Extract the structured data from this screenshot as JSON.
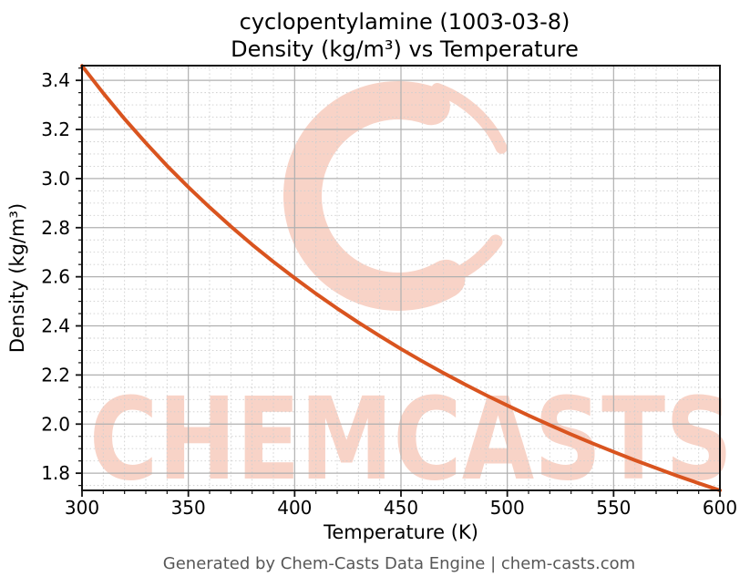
{
  "watermark": {
    "text": "CHEMCASTS",
    "color": "#f8d3c7"
  },
  "footer": {
    "text": "Generated by Chem-Casts Data Engine | chem-casts.com",
    "color": "#575757"
  },
  "colors": {
    "curve": "#d9541f",
    "major_grid": "#b0b0b0",
    "minor_grid": "#cfcfcf",
    "spine": "#111111",
    "tick": "#111111"
  },
  "chart_data": {
    "type": "line",
    "title": "cyclopentylamine (1003-03-8)",
    "subtitle": "Density (kg/m³) vs Temperature",
    "xlabel": "Temperature (K)",
    "ylabel": "Density (kg/m³)",
    "xlim": [
      300,
      600
    ],
    "ylim": [
      1.73,
      3.46
    ],
    "x_major_ticks": [
      300,
      350,
      400,
      450,
      500,
      550,
      600
    ],
    "y_major_ticks": [
      1.8,
      2.0,
      2.2,
      2.4,
      2.6,
      2.8,
      3.0,
      3.2,
      3.4
    ],
    "x_minor_step": 10,
    "y_minor_step": 0.05,
    "grid": true,
    "legend": false,
    "series": [
      {
        "name": "Density (kg/m³)",
        "color": "#d9541f",
        "x": [
          300,
          310,
          320,
          330,
          340,
          350,
          360,
          370,
          380,
          390,
          400,
          410,
          420,
          430,
          440,
          450,
          460,
          470,
          480,
          490,
          500,
          510,
          520,
          530,
          540,
          550,
          560,
          570,
          580,
          590,
          600
        ],
        "y": [
          3.459,
          3.348,
          3.243,
          3.145,
          3.052,
          2.965,
          2.883,
          2.805,
          2.731,
          2.661,
          2.595,
          2.531,
          2.471,
          2.414,
          2.359,
          2.306,
          2.256,
          2.208,
          2.162,
          2.118,
          2.076,
          2.035,
          1.996,
          1.958,
          1.922,
          1.887,
          1.853,
          1.821,
          1.789,
          1.759,
          1.73
        ]
      }
    ]
  }
}
